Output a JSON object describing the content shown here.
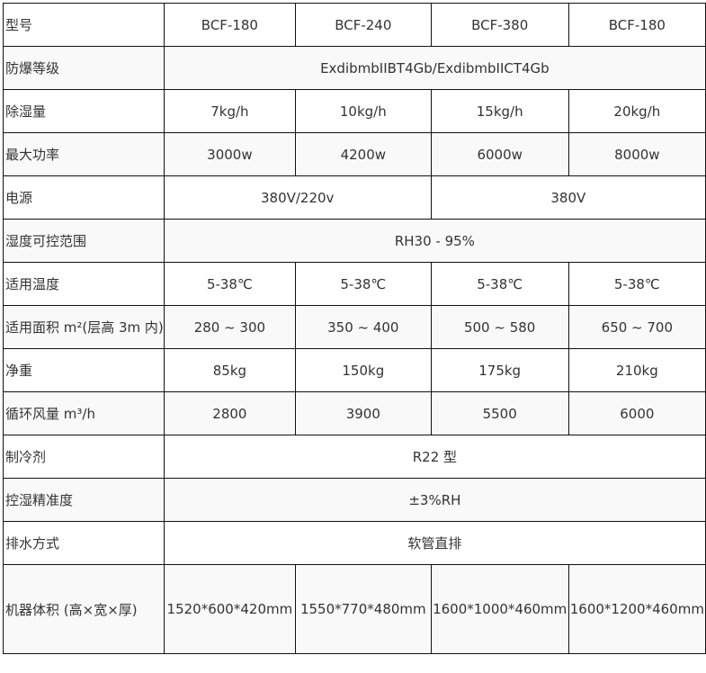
{
  "table": {
    "rows": [
      {
        "label": "型号",
        "cells": [
          "BCF-180",
          "BCF-240",
          "BCF-380",
          "BCF-180"
        ]
      },
      {
        "label": "防爆等级",
        "cells": [
          "ExdibmbIIBT4Gb/ExdibmbIICT4Gb"
        ]
      },
      {
        "label": "除湿量",
        "cells": [
          "7kg/h",
          "10kg/h",
          "15kg/h",
          "20kg/h"
        ]
      },
      {
        "label": "最大功率",
        "cells": [
          "3000w",
          "4200w",
          "6000w",
          "8000w"
        ]
      },
      {
        "label": "电源",
        "cells": [
          "380V/220v",
          "380V"
        ]
      },
      {
        "label": "湿度可控范围",
        "cells": [
          "RH30 - 95%"
        ]
      },
      {
        "label": "适用温度",
        "cells": [
          "5-38℃",
          "5-38℃",
          "5-38℃",
          "5-38℃"
        ]
      },
      {
        "label": "适用面积 m²(层高 3m 内)",
        "cells": [
          "280 ~ 300",
          "350 ~ 400",
          "500 ~ 580",
          "650 ~ 700"
        ]
      },
      {
        "label": "净重",
        "cells": [
          "85kg",
          "150kg",
          "175kg",
          "210kg"
        ]
      },
      {
        "label": "循环风量 m³/h",
        "cells": [
          "2800",
          "3900",
          "5500",
          "6000"
        ]
      },
      {
        "label": "制冷剂",
        "cells": [
          "R22 型"
        ]
      },
      {
        "label": "控湿精准度",
        "cells": [
          "±3%RH"
        ]
      },
      {
        "label": "排水方式",
        "cells": [
          "软管直排"
        ]
      },
      {
        "label": "机器体积 (高×宽×厚)",
        "cells": [
          "1520*600*420mm",
          "1550*770*480mm",
          "1600*1000*460mm",
          "1600*1200*460mm"
        ]
      }
    ]
  }
}
